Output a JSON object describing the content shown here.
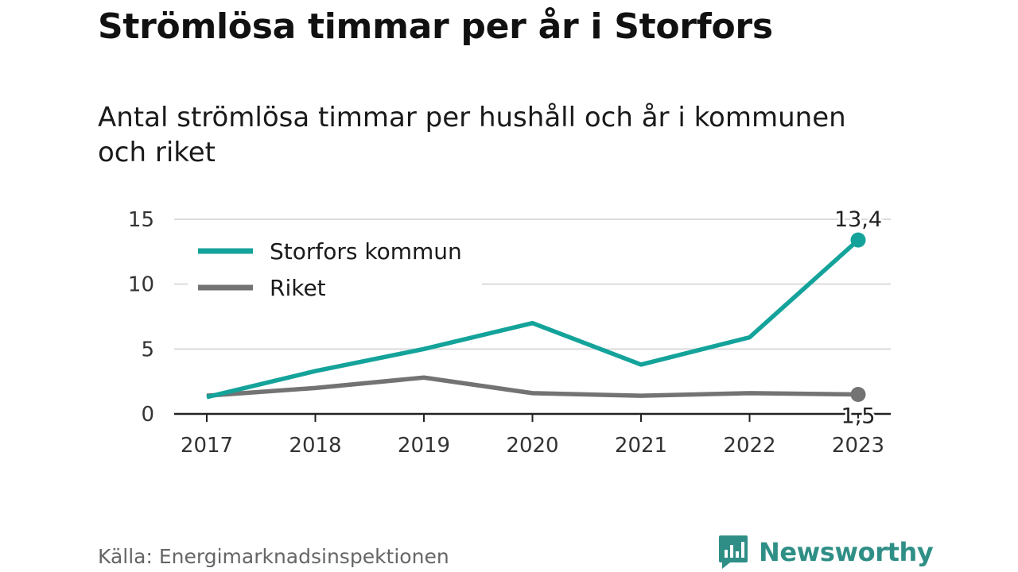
{
  "title": "Strömlösa timmar per år i Storfors",
  "subtitle": "Antal strömlösa timmar per hushåll och år i kommunen och riket",
  "source": "Källa: Energimarknadsinspektionen",
  "brand": {
    "name": "Newsworthy",
    "icon": "newsworthy-logo-icon",
    "color": "#2f8f86"
  },
  "chart_data": {
    "type": "line",
    "x": [
      "2017",
      "2018",
      "2019",
      "2020",
      "2021",
      "2022",
      "2023"
    ],
    "ylim": [
      0,
      15
    ],
    "yticks": [
      0,
      5,
      10,
      15
    ],
    "grid": true,
    "legend": "top-left",
    "series": [
      {
        "name": "Storfors kommun",
        "color": "#14a39a",
        "values": [
          1.3,
          3.3,
          5.0,
          7.0,
          3.8,
          5.9,
          13.4
        ],
        "end_label": "13,4"
      },
      {
        "name": "Riket",
        "color": "#737373",
        "values": [
          1.4,
          2.0,
          2.8,
          1.6,
          1.4,
          1.6,
          1.5
        ],
        "end_label": "1,5"
      }
    ]
  }
}
